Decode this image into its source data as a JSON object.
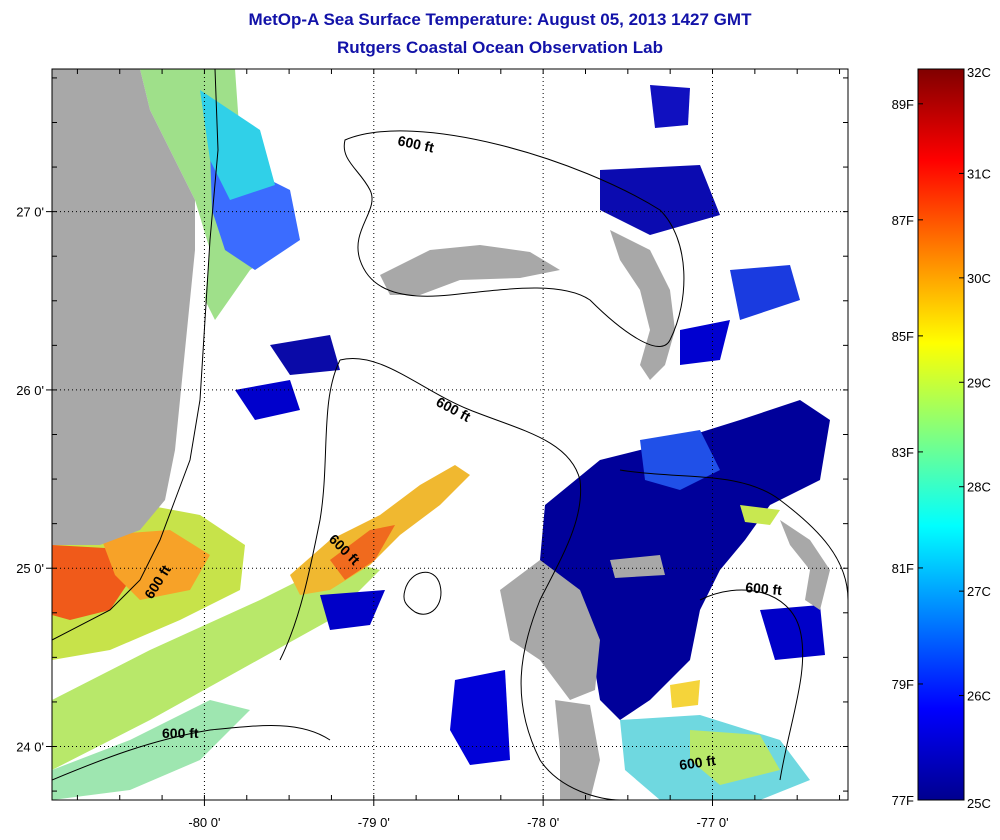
{
  "title_line1": "MetOp-A Sea Surface Temperature:  August 05, 2013 1427 GMT",
  "title_line2": "Rutgers Coastal Ocean Observation Lab",
  "map": {
    "x_ticks": [
      {
        "lon": -80,
        "label": "-80 0'"
      },
      {
        "lon": -79,
        "label": "-79 0'"
      },
      {
        "lon": -78,
        "label": "-78 0'"
      },
      {
        "lon": -77,
        "label": "-77 0'"
      }
    ],
    "y_ticks": [
      {
        "lat": 27,
        "label": "27 0'"
      },
      {
        "lat": 26,
        "label": "26 0'"
      },
      {
        "lat": 25,
        "label": "25 0'"
      },
      {
        "lat": 24,
        "label": "24 0'"
      }
    ],
    "lon_range": [
      -80.9,
      -76.2
    ],
    "lat_range": [
      23.7,
      27.8
    ],
    "contour_label": "600 ft",
    "colors": {
      "land": "#a8a8a8",
      "no_data": "#ffffff",
      "contour": "#000000",
      "grid": "#000000"
    }
  },
  "colorbar": {
    "min_c": 25,
    "max_c": 32,
    "celsius_labels": [
      "32C",
      "31C",
      "30C",
      "29C",
      "28C",
      "27C",
      "26C",
      "25C"
    ],
    "celsius_values": [
      32,
      31,
      30,
      29,
      28,
      27,
      26,
      25
    ],
    "fahrenheit_labels": [
      "89F",
      "87F",
      "85F",
      "83F",
      "81F",
      "79F",
      "77F"
    ],
    "fahrenheit_values": [
      89,
      87,
      85,
      83,
      81,
      79,
      77
    ],
    "colors": [
      "#00008f",
      "#0000ff",
      "#0080ff",
      "#00ffff",
      "#80ff80",
      "#ffff00",
      "#ff8000",
      "#ff0000",
      "#800000"
    ]
  }
}
